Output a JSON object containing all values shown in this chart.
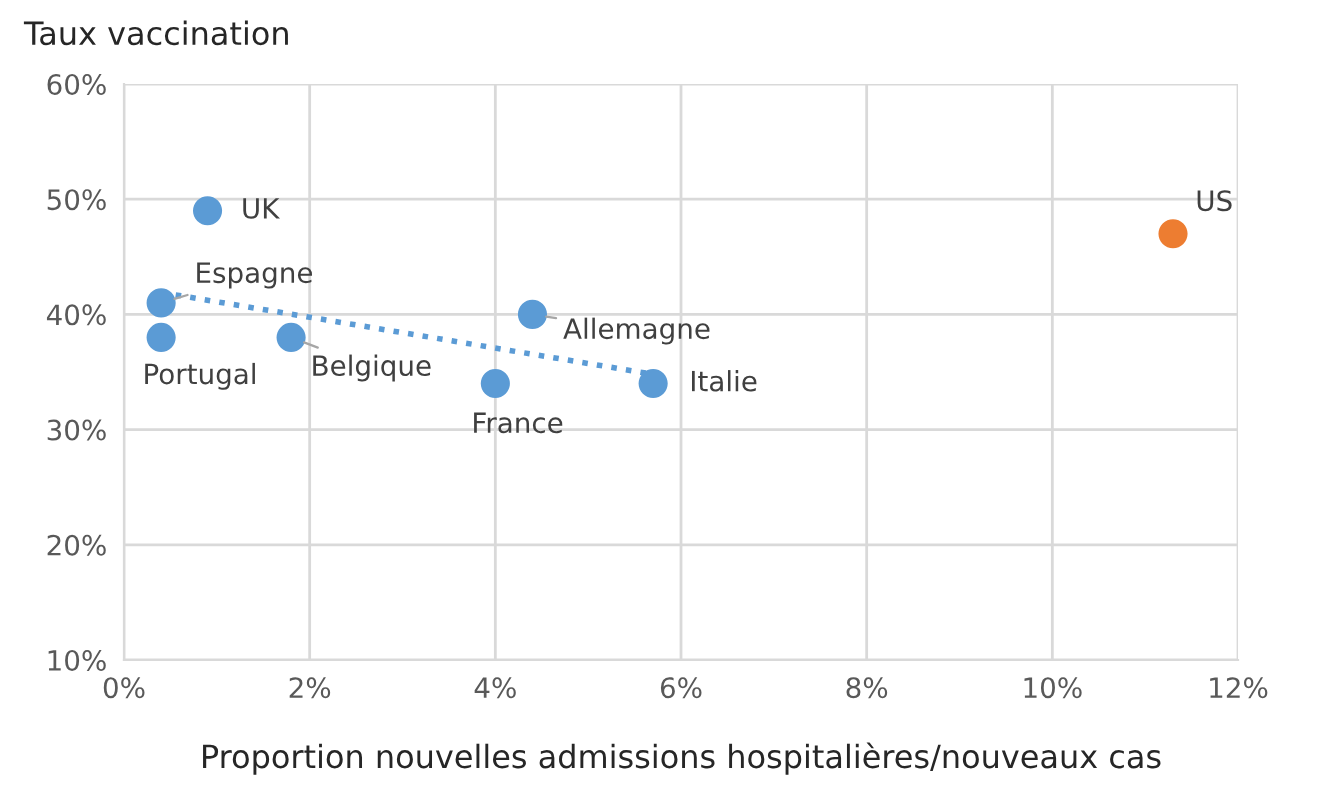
{
  "chart_data": {
    "type": "scatter",
    "xlabel": "Proportion nouvelles admissions hospitalières/nouveaux cas",
    "ylabel": "Taux vaccination",
    "series": [
      {
        "x": [
          0.9,
          0.4,
          0.4,
          1.8,
          4.0,
          4.4,
          5.7,
          11.3
        ],
        "values": [
          49,
          41,
          38,
          38,
          34,
          40,
          34,
          47
        ],
        "colors": [
          "#5b9bd5",
          "#5b9bd5",
          "#5b9bd5",
          "#5b9bd5",
          "#5b9bd5",
          "#5b9bd5",
          "#5b9bd5",
          "#ed7d31"
        ],
        "marker": "circle"
      },
      {
        "type": "line",
        "x": [
          0.4,
          5.7
        ],
        "values": [
          41.9,
          34.8
        ],
        "color": "#5b9bd5",
        "line_style": "dotted",
        "marker": "none"
      }
    ],
    "annotations": [
      {
        "text": "UK",
        "x": 0.9,
        "y": 49
      },
      {
        "text": "Espagne",
        "x": 0.4,
        "y": 41
      },
      {
        "text": "Portugal",
        "x": 0.4,
        "y": 38
      },
      {
        "text": "Belgique",
        "x": 1.8,
        "y": 38
      },
      {
        "text": "France",
        "x": 4.0,
        "y": 34
      },
      {
        "text": "Allemagne",
        "x": 4.4,
        "y": 40
      },
      {
        "text": "Italie",
        "x": 5.7,
        "y": 34
      },
      {
        "text": "US",
        "x": 11.3,
        "y": 47
      }
    ],
    "xlim": [
      0,
      12
    ],
    "xticks": [
      {
        "value": 0,
        "label": "0%"
      },
      {
        "value": 2,
        "label": "2%"
      },
      {
        "value": 4,
        "label": "4%"
      },
      {
        "value": 6,
        "label": "6%"
      },
      {
        "value": 8,
        "label": "8%"
      },
      {
        "value": 10,
        "label": "10%"
      },
      {
        "value": 12,
        "label": "12%"
      }
    ],
    "ylim": [
      10,
      60
    ],
    "yticks": [
      {
        "value": 10,
        "label": "10%"
      },
      {
        "value": 20,
        "label": "20%"
      },
      {
        "value": 30,
        "label": "30%"
      },
      {
        "value": 40,
        "label": "40%"
      },
      {
        "value": 50,
        "label": "50%"
      },
      {
        "value": 60,
        "label": "60%"
      }
    ],
    "grid": true
  }
}
